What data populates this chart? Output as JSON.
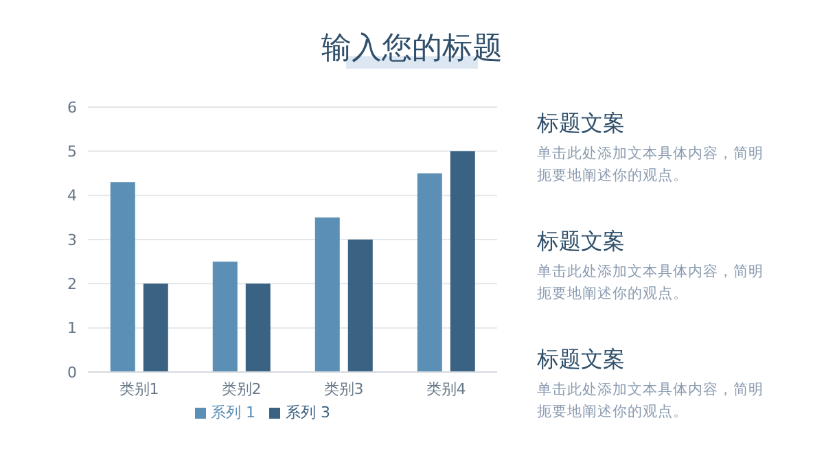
{
  "chart_data": {
    "type": "bar",
    "title": "输入您的标题",
    "categories": [
      "类别1",
      "类别2",
      "类别3",
      "类别4"
    ],
    "series": [
      {
        "name": "系列 1",
        "color": "#5b8fb5",
        "values": [
          4.3,
          2.5,
          3.5,
          4.5
        ]
      },
      {
        "name": "系列 3",
        "color": "#3a6282",
        "values": [
          2,
          2,
          3,
          5
        ]
      }
    ],
    "ylim": [
      0,
      6
    ],
    "yticks": [
      0,
      1,
      2,
      3,
      4,
      5,
      6
    ],
    "grid": "y",
    "legend": "bottom",
    "annotations": [
      "标题文案",
      "单击此处添加文本具体内容，简明扼要地阐述你的观点。",
      "标题文案",
      "单击此处添加文本具体内容，简明扼要地阐述你的观点。",
      "标题文案",
      "单击此处添加文本具体内容，简明扼要地阐述你的观点。"
    ]
  }
}
